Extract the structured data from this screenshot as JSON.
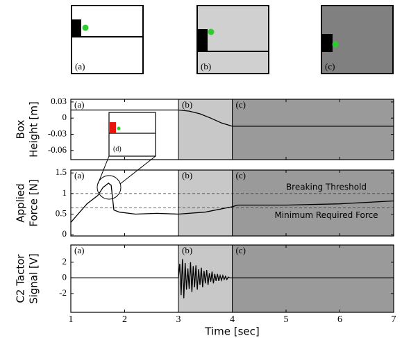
{
  "illustrations": [
    {
      "label": "(a)"
    },
    {
      "label": "(b)"
    },
    {
      "label": "(c)"
    }
  ],
  "inset": {
    "label": "(d)"
  },
  "chart_data": [
    {
      "type": "line",
      "ylabel": [
        "Box",
        "Height [m]"
      ],
      "xlim": [
        1,
        7
      ],
      "ylim": [
        -0.077,
        0.035
      ],
      "yticks": [
        0.03,
        0,
        -0.03,
        -0.06
      ],
      "regions": [
        {
          "label": "(a)",
          "from": 1,
          "to": 3,
          "color": "#ffffff"
        },
        {
          "label": "(b)",
          "from": 3,
          "to": 4,
          "color": "#c8c8c8"
        },
        {
          "label": "(c)",
          "from": 4,
          "to": 7,
          "color": "#9a9a9a"
        }
      ],
      "series": [
        {
          "color": "#000000",
          "x": [
            1,
            3,
            3.2,
            3.4,
            3.6,
            3.8,
            4,
            7
          ],
          "values": [
            0.015,
            0.015,
            0.013,
            0.008,
            0.0,
            -0.009,
            -0.015,
            -0.015
          ]
        }
      ]
    },
    {
      "type": "line",
      "ylabel": [
        "Applied",
        "Force [N]"
      ],
      "xlim": [
        1,
        7
      ],
      "ylim": [
        -0.03,
        1.57
      ],
      "yticks": [
        0,
        0.5,
        1,
        1.5
      ],
      "regions": [
        {
          "label": "(a)",
          "from": 1,
          "to": 3,
          "color": "#ffffff"
        },
        {
          "label": "(b)",
          "from": 3,
          "to": 4,
          "color": "#c8c8c8"
        },
        {
          "label": "(c)",
          "from": 4,
          "to": 7,
          "color": "#9a9a9a"
        }
      ],
      "hlines": [
        {
          "value": 1,
          "label": "Breaking Threshold"
        },
        {
          "value": 0.65,
          "label": "Minimum Required Force"
        }
      ],
      "series": [
        {
          "color": "#000000",
          "x": [
            1,
            1.1,
            1.3,
            1.5,
            1.6,
            1.7,
            1.75,
            1.8,
            1.9,
            2.2,
            2.6,
            3,
            3.5,
            4,
            4.1,
            5,
            6,
            7
          ],
          "values": [
            0.3,
            0.45,
            0.75,
            0.95,
            1.15,
            1.25,
            1.2,
            0.6,
            0.55,
            0.5,
            0.52,
            0.5,
            0.55,
            0.68,
            0.72,
            0.72,
            0.75,
            0.82
          ]
        }
      ]
    },
    {
      "type": "line",
      "ylabel": [
        "C2 Tactor",
        "Signal [V]"
      ],
      "xlabel": "Time [sec]",
      "xlim": [
        1,
        7
      ],
      "xticks": [
        1,
        2,
        3,
        4,
        5,
        6,
        7
      ],
      "ylim": [
        -4.4,
        4.2
      ],
      "yticks": [
        2,
        0,
        -2
      ],
      "regions": [
        {
          "label": "(a)",
          "from": 1,
          "to": 3,
          "color": "#ffffff"
        },
        {
          "label": "(b)",
          "from": 3,
          "to": 4,
          "color": "#c8c8c8"
        },
        {
          "label": "(c)",
          "from": 4,
          "to": 7,
          "color": "#9a9a9a"
        }
      ],
      "series": [
        {
          "color": "#000000",
          "x": [
            1,
            3.0,
            3.025,
            3.05,
            3.075,
            3.1,
            3.125,
            3.15,
            3.175,
            3.2,
            3.225,
            3.25,
            3.275,
            3.3,
            3.325,
            3.35,
            3.375,
            3.4,
            3.425,
            3.45,
            3.475,
            3.5,
            3.525,
            3.55,
            3.575,
            3.6,
            3.625,
            3.65,
            3.675,
            3.7,
            3.725,
            3.75,
            3.775,
            3.8,
            3.825,
            3.85,
            3.875,
            3.9,
            3.925,
            3.95,
            7
          ],
          "values": [
            0,
            0,
            1.8,
            -2.2,
            2.4,
            -2.6,
            1.9,
            -1.5,
            1.2,
            -1.4,
            2.0,
            -1.8,
            1.5,
            -1.2,
            1.6,
            -1.5,
            1.1,
            -0.9,
            1.3,
            -1.2,
            0.9,
            -0.7,
            1.0,
            -0.9,
            0.6,
            -0.5,
            0.8,
            -0.7,
            0.5,
            -0.4,
            0.5,
            -0.4,
            0.3,
            -0.3,
            0.3,
            -0.2,
            0.2,
            -0.2,
            0.1,
            0,
            0
          ]
        }
      ]
    }
  ]
}
